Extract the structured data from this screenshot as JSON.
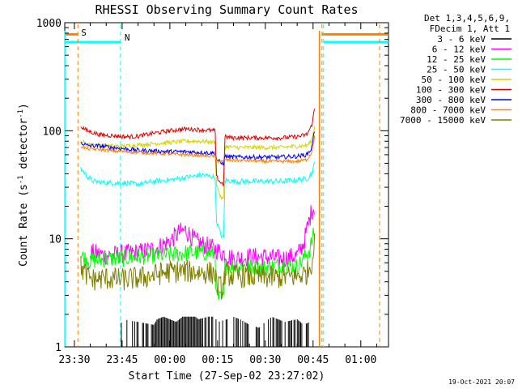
{
  "chart_data": {
    "type": "line",
    "title": "RHESSI Observing Summary Count Rates",
    "xlabel": "Start Time (27-Sep-02 23:27:02)",
    "ylabel_main": "Count Rate (s",
    "ylabel_sup1": "-1",
    "ylabel_mid": " detector",
    "ylabel_sup2": "-1",
    "ylabel_end": ")",
    "yscale": "log",
    "ylim": [
      1,
      1000
    ],
    "xlim_minutes": [
      -3.03,
      98.7
    ],
    "x_ticks": [
      {
        "label": "23:30",
        "minute": 0
      },
      {
        "label": "23:45",
        "minute": 15
      },
      {
        "label": "00:00",
        "minute": 30
      },
      {
        "label": "00:15",
        "minute": 45
      },
      {
        "label": "00:30",
        "minute": 60
      },
      {
        "label": "00:45",
        "minute": 75
      },
      {
        "label": "01:00",
        "minute": 90
      }
    ],
    "y_ticks": [
      {
        "label": "1",
        "value": 1
      },
      {
        "label": "10",
        "value": 10
      },
      {
        "label": "100",
        "value": 100
      },
      {
        "label": "1000",
        "value": 1000
      }
    ],
    "legend": {
      "placement": "right",
      "header1": "Det 1,3,4,5,6,9,",
      "header2": "FDecim 1, Att 1",
      "entries": [
        {
          "label": "3 - 6 keV",
          "color": "#000000"
        },
        {
          "label": "6 - 12 keV",
          "color": "#ff00ff"
        },
        {
          "label": "12 - 25 keV",
          "color": "#00ff00"
        },
        {
          "label": "25 - 50 keV",
          "color": "#00ffff"
        },
        {
          "label": "50 - 100 keV",
          "color": "#d4d400"
        },
        {
          "label": "100 - 300 keV",
          "color": "#e00000"
        },
        {
          "label": "300 - 800 keV",
          "color": "#0000ff"
        },
        {
          "label": "800 - 7000 keV",
          "color": "#ff8000"
        },
        {
          "label": "7000 - 15000 keV",
          "color": "#808000"
        }
      ]
    },
    "annotations": {
      "saa_label": "S",
      "night_label": "N",
      "saa_color": "#ff8000",
      "night_color": "#00ffff",
      "saa_bars": [
        {
          "from": -3.03,
          "to": 1.1,
          "value": 780
        },
        {
          "from": 77.8,
          "to": 98.7,
          "value": 780
        }
      ],
      "night_bars": [
        {
          "from": -3.03,
          "to": 14.5,
          "value": 660
        },
        {
          "from": 78.3,
          "to": 98.7,
          "value": 660
        }
      ],
      "saa_lines": [
        1.1,
        77.8,
        95.9
      ],
      "night_lines": [
        14.5,
        78.3
      ],
      "saa_solid_lines": [
        77.0
      ],
      "night_solid_lines": [
        -3.0
      ]
    },
    "series": [
      {
        "name": "3 - 6 keV",
        "color": "#000000",
        "x": [
          14.4,
          15,
          25,
          26,
          28,
          30,
          32,
          34,
          36,
          38,
          39,
          42,
          44,
          45,
          48,
          50,
          52,
          55,
          58,
          60,
          62,
          66,
          70,
          72,
          74
        ],
        "y": [
          1.5,
          1.8,
          1.6,
          1.8,
          1.9,
          1.8,
          1.7,
          1.9,
          1.9,
          1.9,
          1.8,
          1.9,
          1.9,
          1.7,
          1.8,
          1.9,
          1.8,
          1.6,
          1.5,
          1.7,
          1.9,
          1.7,
          1.8,
          1.6,
          1.7
        ]
      },
      {
        "name": "6 - 12 keV",
        "color": "#ff00ff",
        "x": [
          5,
          10,
          15,
          20,
          25,
          30,
          33,
          35,
          38,
          42,
          45,
          50,
          55,
          60,
          65,
          70,
          72,
          73,
          74.5,
          75.5
        ],
        "y": [
          7.5,
          7.0,
          7.2,
          7.5,
          8.0,
          9.5,
          11.5,
          12.0,
          9.5,
          8.5,
          7.8,
          6.5,
          6.8,
          6.8,
          6.5,
          7.0,
          9.0,
          12.0,
          18.0,
          20.0
        ]
      },
      {
        "name": "12 - 25 keV",
        "color": "#00ff00",
        "x": [
          2,
          5,
          10,
          15,
          20,
          25,
          30,
          35,
          40,
          44.4,
          44.5,
          47,
          47.2,
          50,
          55,
          60,
          65,
          70,
          72,
          74,
          75.5
        ],
        "y": [
          7.0,
          6.2,
          6.5,
          6.6,
          6.8,
          7.0,
          7.1,
          7.4,
          7.5,
          7.2,
          2.8,
          2.8,
          5.5,
          5.6,
          5.6,
          5.4,
          5.8,
          5.5,
          6.5,
          8.0,
          12.0
        ]
      },
      {
        "name": "25 - 50 keV",
        "color": "#00ffff",
        "x": [
          2,
          4,
          6,
          10,
          15,
          20,
          25,
          30,
          35,
          40,
          44.4,
          44.5,
          46,
          47,
          47.2,
          50,
          55,
          60,
          65,
          70,
          73,
          74.5,
          75.5
        ],
        "y": [
          45,
          38,
          34,
          33,
          33,
          32,
          34,
          35,
          37,
          39,
          37,
          15,
          11,
          10,
          35,
          34,
          34,
          34,
          34,
          35,
          36,
          40,
          50
        ]
      },
      {
        "name": "50 - 100 keV",
        "color": "#d4d400",
        "x": [
          2,
          4,
          8,
          12,
          16,
          20,
          25,
          30,
          35,
          40,
          44.4,
          44.5,
          46,
          47,
          47.2,
          50,
          55,
          60,
          65,
          70,
          73,
          74.5,
          75.5
        ],
        "y": [
          80,
          75,
          74,
          72,
          72,
          74,
          76,
          78,
          80,
          80,
          78,
          33,
          24,
          23,
          72,
          70,
          70,
          70,
          70,
          72,
          73,
          80,
          110
        ]
      },
      {
        "name": "100 - 300 keV",
        "color": "#e00000",
        "x": [
          2,
          4,
          8,
          12,
          16,
          20,
          25,
          30,
          35,
          40,
          44.4,
          44.5,
          46,
          47,
          47.2,
          50,
          55,
          60,
          65,
          70,
          73,
          74.5,
          75.5
        ],
        "y": [
          110,
          100,
          92,
          90,
          88,
          89,
          95,
          100,
          104,
          102,
          100,
          38,
          33,
          32,
          88,
          86,
          86,
          86,
          86,
          88,
          92,
          110,
          160
        ]
      },
      {
        "name": "300 - 800 keV",
        "color": "#0000ff",
        "x": [
          2,
          4,
          8,
          12,
          16,
          20,
          25,
          30,
          35,
          40,
          44.4,
          44.5,
          45.5,
          46,
          47,
          47.2,
          50,
          55,
          60,
          65,
          70,
          73,
          74.5,
          75.5
        ],
        "y": [
          78,
          73,
          72,
          70,
          68,
          66,
          65,
          64,
          64,
          63,
          62,
          55,
          52,
          50,
          50,
          58,
          57,
          57,
          57,
          57,
          58,
          60,
          68,
          100
        ]
      },
      {
        "name": "800 - 7000 keV",
        "color": "#ff8000",
        "x": [
          2,
          4,
          8,
          12,
          16,
          20,
          25,
          30,
          35,
          40,
          44.4,
          44.5,
          46,
          47,
          47.2,
          50,
          55,
          60,
          65,
          70,
          73,
          74.5,
          75.5
        ],
        "y": [
          72,
          68,
          67,
          65,
          64,
          63,
          62,
          61,
          60,
          59,
          58,
          53,
          52,
          52,
          54,
          53,
          53,
          52,
          52,
          52,
          54,
          62,
          90
        ]
      },
      {
        "name": "7000 - 15000 keV",
        "color": "#808000",
        "x": [
          2,
          4,
          6,
          10,
          15,
          20,
          25,
          30,
          35,
          40,
          44.4,
          44.5,
          46,
          47,
          47.2,
          50,
          55,
          60,
          65,
          70,
          73,
          74.5,
          75.5
        ],
        "y": [
          5.5,
          4.5,
          4.2,
          4.3,
          4.2,
          4.3,
          4.6,
          5.0,
          5.0,
          4.9,
          4.8,
          3.8,
          3.5,
          3.6,
          4.8,
          4.5,
          4.5,
          4.4,
          4.4,
          4.5,
          4.8,
          6.0,
          9.0
        ]
      }
    ]
  },
  "footer": {
    "timestamp": "19-Oct-2021 20:07"
  }
}
